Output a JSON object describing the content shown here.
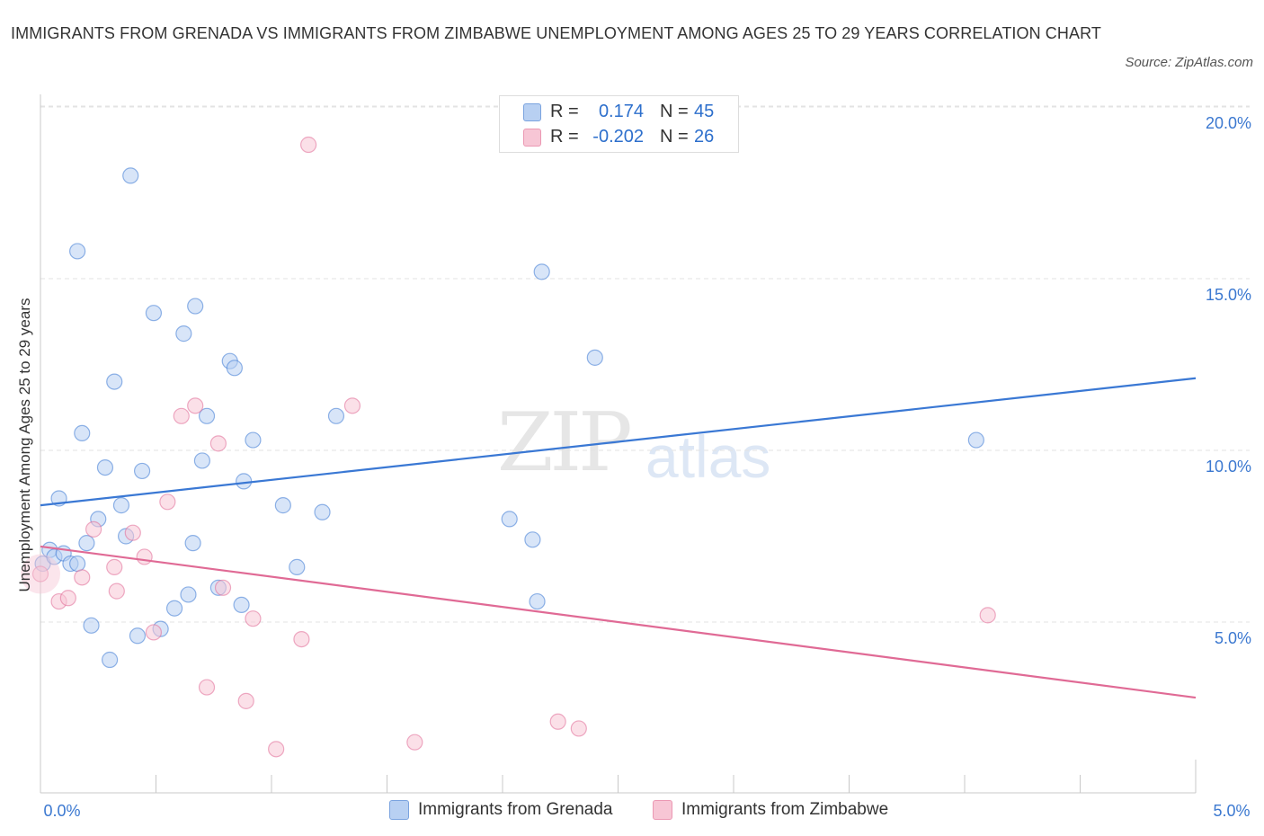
{
  "title": "IMMIGRANTS FROM GRENADA VS IMMIGRANTS FROM ZIMBABWE UNEMPLOYMENT AMONG AGES 25 TO 29 YEARS CORRELATION CHART",
  "source": "Source: ZipAtlas.com",
  "watermark": {
    "zip": "ZIP",
    "atlas": "atlas"
  },
  "legend_top": [
    {
      "r_label": "R =",
      "r_value": "0.174",
      "n_label": "N =",
      "n_value": "45",
      "color": "#b8d0f2"
    },
    {
      "r_label": "R =",
      "r_value": "-0.202",
      "n_label": "N =",
      "n_value": "26",
      "color": "#f7c6d5"
    }
  ],
  "legend_bottom": [
    {
      "label": "Immigrants from Grenada",
      "color": "#b8d0f2"
    },
    {
      "label": "Immigrants from Zimbabwe",
      "color": "#f7c6d5"
    }
  ],
  "chart_data": {
    "type": "scatter",
    "title": "IMMIGRANTS FROM GRENADA VS IMMIGRANTS FROM ZIMBABWE UNEMPLOYMENT AMONG AGES 25 TO 29 YEARS CORRELATION CHART",
    "xlabel": "",
    "ylabel": "Unemployment Among Ages 25 to 29 years",
    "xlim": [
      0,
      5
    ],
    "ylim": [
      0,
      20
    ],
    "x_tick_labels": [
      "0.0%",
      "5.0%"
    ],
    "y_ticks": [
      5,
      10,
      15,
      20
    ],
    "y_tick_labels": [
      "5.0%",
      "10.0%",
      "15.0%",
      "20.0%"
    ],
    "grid": true,
    "series": [
      {
        "name": "Immigrants from Grenada",
        "color": "#3a78d4",
        "fill": "#b8d0f2",
        "r": 0.174,
        "n": 45,
        "trend": [
          [
            0,
            8.4
          ],
          [
            5,
            12.1
          ]
        ],
        "points": [
          [
            0.01,
            6.7
          ],
          [
            0.04,
            7.1
          ],
          [
            0.06,
            6.9
          ],
          [
            0.08,
            8.6
          ],
          [
            0.1,
            7.0
          ],
          [
            0.13,
            6.7
          ],
          [
            0.16,
            6.7
          ],
          [
            0.18,
            10.5
          ],
          [
            0.2,
            7.3
          ],
          [
            0.22,
            4.9
          ],
          [
            0.25,
            8.0
          ],
          [
            0.28,
            9.5
          ],
          [
            0.3,
            3.9
          ],
          [
            0.32,
            12.0
          ],
          [
            0.35,
            8.4
          ],
          [
            0.37,
            7.5
          ],
          [
            0.39,
            18.0
          ],
          [
            0.42,
            4.6
          ],
          [
            0.44,
            9.4
          ],
          [
            0.49,
            14.0
          ],
          [
            0.52,
            4.8
          ],
          [
            0.58,
            5.4
          ],
          [
            0.62,
            13.4
          ],
          [
            0.64,
            5.8
          ],
          [
            0.66,
            7.3
          ],
          [
            0.67,
            14.2
          ],
          [
            0.7,
            9.7
          ],
          [
            0.72,
            11.0
          ],
          [
            0.77,
            6.0
          ],
          [
            0.82,
            12.6
          ],
          [
            0.84,
            12.4
          ],
          [
            0.87,
            5.5
          ],
          [
            0.88,
            9.1
          ],
          [
            0.92,
            10.3
          ],
          [
            1.05,
            8.4
          ],
          [
            1.11,
            6.6
          ],
          [
            1.22,
            8.2
          ],
          [
            1.28,
            11.0
          ],
          [
            2.03,
            8.0
          ],
          [
            2.13,
            7.4
          ],
          [
            2.15,
            5.6
          ],
          [
            2.17,
            15.2
          ],
          [
            2.4,
            12.7
          ],
          [
            4.05,
            10.3
          ],
          [
            0.16,
            15.8
          ]
        ]
      },
      {
        "name": "Immigrants from Zimbabwe",
        "color": "#e06a95",
        "fill": "#f7c6d5",
        "r": -0.202,
        "n": 26,
        "trend": [
          [
            0,
            7.2
          ],
          [
            5,
            2.8
          ]
        ],
        "points": [
          [
            0.0,
            6.4
          ],
          [
            0.08,
            5.6
          ],
          [
            0.12,
            5.7
          ],
          [
            0.18,
            6.3
          ],
          [
            0.23,
            7.7
          ],
          [
            0.32,
            6.6
          ],
          [
            0.33,
            5.9
          ],
          [
            0.4,
            7.6
          ],
          [
            0.45,
            6.9
          ],
          [
            0.49,
            4.7
          ],
          [
            0.55,
            8.5
          ],
          [
            0.61,
            11.0
          ],
          [
            0.67,
            11.3
          ],
          [
            0.72,
            3.1
          ],
          [
            0.77,
            10.2
          ],
          [
            0.79,
            6.0
          ],
          [
            0.89,
            2.7
          ],
          [
            0.92,
            5.1
          ],
          [
            1.02,
            1.3
          ],
          [
            1.13,
            4.5
          ],
          [
            1.16,
            18.9
          ],
          [
            1.35,
            11.3
          ],
          [
            1.62,
            1.5
          ],
          [
            2.24,
            2.1
          ],
          [
            2.33,
            1.9
          ],
          [
            4.1,
            5.2
          ]
        ]
      }
    ]
  }
}
